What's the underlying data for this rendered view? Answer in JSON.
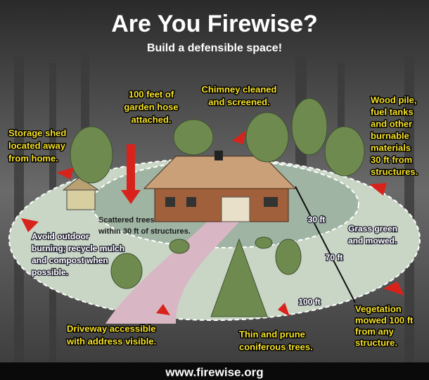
{
  "header": {
    "title": "Are You Firewise?",
    "subtitle": "Build a defensible space!"
  },
  "labels": {
    "hose": [
      "100 feet of",
      "garden hose",
      "attached."
    ],
    "chimney": [
      "Chimney cleaned",
      "and screened."
    ],
    "shed": [
      "Storage shed",
      "located away",
      "from home."
    ],
    "woodpile": [
      "Wood pile,",
      "fuel tanks",
      "and other",
      "burnable",
      "materials",
      "30 ft from",
      "structures."
    ],
    "trees": [
      "Scattered trees",
      "within 30 ft of structures."
    ],
    "grass": [
      "Grass green",
      "and mowed."
    ],
    "burning": [
      "Avoid outdoor",
      "burning; recycle mulch",
      "and compost when",
      "possible."
    ],
    "vegetation": [
      "Vegetation",
      "mowed 100 ft",
      "from any",
      "structure."
    ],
    "driveway": [
      "Driveway accessible",
      "with address visible."
    ],
    "prune": [
      "Thin and prune",
      "coniferous trees."
    ]
  },
  "distances": {
    "inner": "30 ft",
    "middle": "70 ft",
    "outer": "100 ft"
  },
  "footer": {
    "url": "www.firewise.org"
  }
}
